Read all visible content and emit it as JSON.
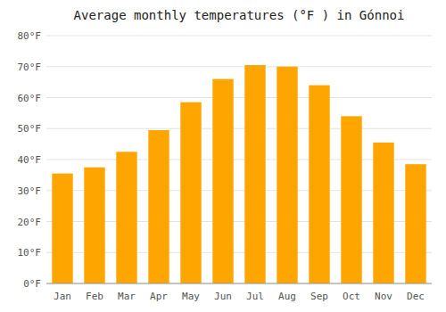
{
  "chart_data": {
    "type": "bar",
    "title": "Average monthly temperatures (°F ) in Gónnoi",
    "categories": [
      "Jan",
      "Feb",
      "Mar",
      "Apr",
      "May",
      "Jun",
      "Jul",
      "Aug",
      "Sep",
      "Oct",
      "Nov",
      "Dec"
    ],
    "values": [
      35.5,
      37.5,
      42.5,
      49.5,
      58.5,
      66.0,
      70.5,
      70.0,
      64.0,
      54.0,
      45.5,
      38.5
    ],
    "color": "#FFA500",
    "ylim": [
      0,
      80
    ],
    "yticks": [
      {
        "value": 0,
        "label": "0°F"
      },
      {
        "value": 10,
        "label": "10°F"
      },
      {
        "value": 20,
        "label": "20°F"
      },
      {
        "value": 30,
        "label": "30°F"
      },
      {
        "value": 40,
        "label": "40°F"
      },
      {
        "value": 50,
        "label": "50°F"
      },
      {
        "value": 60,
        "label": "60°F"
      },
      {
        "value": 70,
        "label": "70°F"
      },
      {
        "value": 80,
        "label": "80°F"
      }
    ],
    "grid": true
  }
}
